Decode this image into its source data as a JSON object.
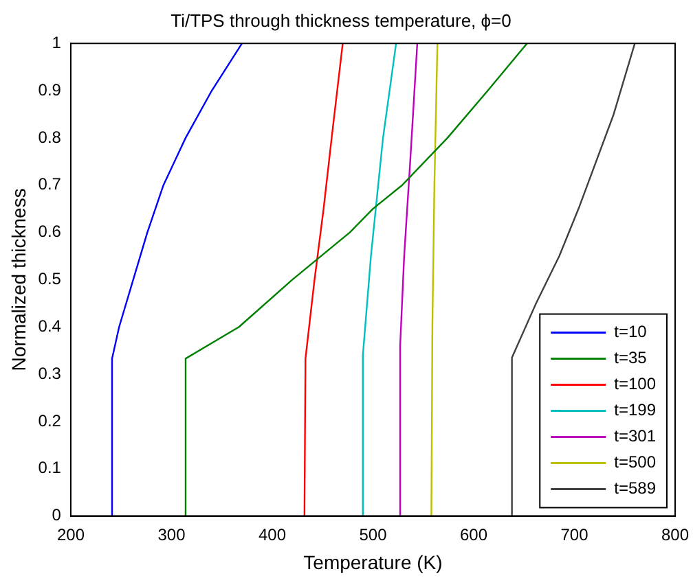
{
  "chart_data": {
    "type": "line",
    "title": "Ti/TPS through thickness temperature, ϕ=0",
    "xlabel": "Temperature (K)",
    "ylabel": "Normalized thickness",
    "xlim": [
      200,
      800
    ],
    "xticks": [
      200,
      300,
      400,
      500,
      600,
      700,
      800
    ],
    "ylim": [
      0,
      1
    ],
    "yticks": [
      0,
      0.1,
      0.2,
      0.3,
      0.4,
      0.5,
      0.6,
      0.7,
      0.8,
      0.9,
      1
    ],
    "grid": false,
    "legend": "bottom right",
    "marker": "none",
    "line_style": "solid",
    "series": [
      {
        "name": "t=10",
        "color": "#0000ff",
        "x": [
          241,
          241,
          248,
          262,
          276,
          292,
          314,
          340,
          370
        ],
        "values": [
          0,
          0.333,
          0.4,
          0.5,
          0.6,
          0.7,
          0.8,
          0.9,
          1
        ]
      },
      {
        "name": "t=35",
        "color": "#008000",
        "x": [
          313,
          314,
          367,
          420,
          477,
          500,
          529,
          574,
          614,
          653
        ],
        "values": [
          0,
          0.333,
          0.4,
          0.5,
          0.6,
          0.65,
          0.7,
          0.8,
          0.9,
          1
        ]
      },
      {
        "name": "t=100",
        "color": "#ff0000",
        "x": [
          432,
          433,
          442,
          451,
          459,
          470
        ],
        "values": [
          0,
          0.333,
          0.5,
          0.65,
          0.8,
          1
        ]
      },
      {
        "name": "t=199",
        "color": "#00bfbf",
        "x": [
          490,
          490,
          498,
          510,
          523
        ],
        "values": [
          0,
          0.34,
          0.55,
          0.8,
          1
        ]
      },
      {
        "name": "t=301",
        "color": "#bf00bf",
        "x": [
          527,
          527,
          531,
          537,
          544
        ],
        "values": [
          0,
          0.36,
          0.55,
          0.75,
          1
        ]
      },
      {
        "name": "t=500",
        "color": "#bfbf00",
        "x": [
          558,
          559,
          561,
          564
        ],
        "values": [
          0,
          0.4,
          0.7,
          1
        ]
      },
      {
        "name": "t=589",
        "color": "#404040",
        "x": [
          638,
          638,
          662,
          685,
          705,
          739,
          760
        ],
        "values": [
          0,
          0.335,
          0.45,
          0.55,
          0.655,
          0.85,
          1
        ]
      }
    ]
  }
}
